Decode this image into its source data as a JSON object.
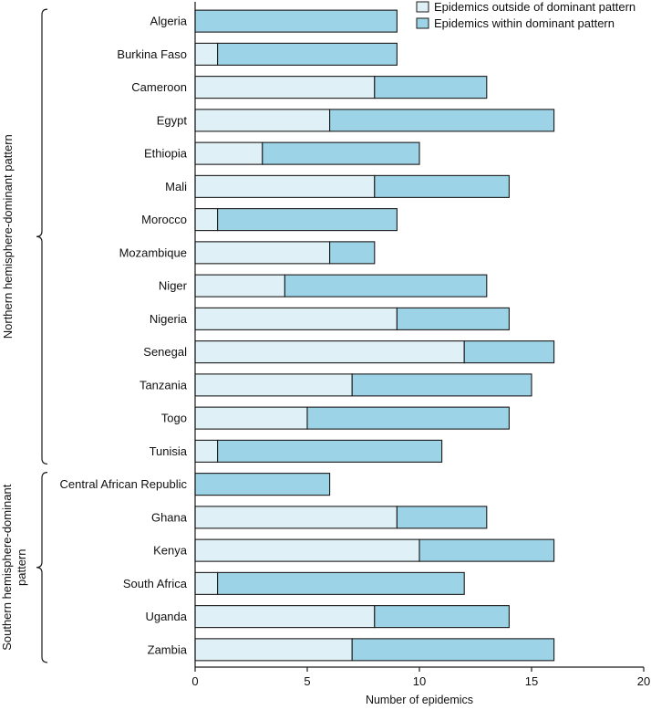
{
  "chart_data": {
    "type": "bar",
    "orientation": "horizontal",
    "stacked": true,
    "title": "",
    "xlabel": "Number of epidemics",
    "ylabel": "",
    "xlim": [
      0,
      20
    ],
    "xticks": [
      0,
      5,
      10,
      15,
      20
    ],
    "grid": false,
    "legend_position": "top-right",
    "categories": [
      "Algeria",
      "Burkina Faso",
      "Cameroon",
      "Egypt",
      "Ethiopia",
      "Mali",
      "Morocco",
      "Mozambique",
      "Niger",
      "Nigeria",
      "Senegal",
      "Tanzania",
      "Togo",
      "Tunisia",
      "Central African Republic",
      "Ghana",
      "Kenya",
      "South Africa",
      "Uganda",
      "Zambia"
    ],
    "series": [
      {
        "name": "Epidemics outside of dominant pattern",
        "color": "#dff0f6",
        "values": [
          0,
          1,
          8,
          6,
          3,
          8,
          1,
          6,
          4,
          9,
          12,
          7,
          5,
          1,
          0,
          9,
          10,
          1,
          8,
          7
        ]
      },
      {
        "name": "Epidemics within dominant pattern",
        "color": "#9dd3e6",
        "values": [
          9,
          8,
          5,
          10,
          7,
          6,
          8,
          2,
          9,
          5,
          4,
          8,
          9,
          10,
          6,
          4,
          6,
          11,
          6,
          9
        ]
      }
    ],
    "groups": [
      {
        "label": "Northern hemisphere-dominant pattern",
        "from": 0,
        "to": 13
      },
      {
        "label": "Southern hemisphere-dominant pattern",
        "lines": [
          "Southern hemisphere-dominant",
          "pattern"
        ],
        "from": 14,
        "to": 19
      }
    ]
  }
}
